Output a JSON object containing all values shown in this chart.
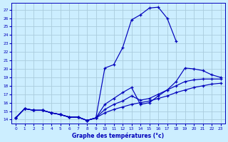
{
  "bg_color": "#cceeff",
  "grid_color": "#aaccdd",
  "line_color": "#0000bb",
  "xlabel": "Graphe des températures (°c)",
  "xlim": [
    -0.5,
    23.5
  ],
  "ylim": [
    13.5,
    27.8
  ],
  "yticks": [
    14,
    15,
    16,
    17,
    18,
    19,
    20,
    21,
    22,
    23,
    24,
    25,
    26,
    27
  ],
  "xticks": [
    0,
    1,
    2,
    3,
    4,
    5,
    6,
    7,
    8,
    9,
    10,
    11,
    12,
    13,
    14,
    15,
    16,
    17,
    18,
    19,
    20,
    21,
    22,
    23
  ],
  "series": [
    {
      "x": [
        0,
        1,
        2,
        3,
        4,
        5,
        6,
        7,
        8,
        9,
        10,
        11,
        12,
        13,
        14,
        15,
        16,
        17,
        18
      ],
      "y": [
        14.2,
        15.3,
        15.1,
        15.1,
        14.8,
        14.6,
        14.3,
        14.3,
        13.9,
        14.2,
        20.1,
        20.5,
        22.5,
        25.8,
        26.4,
        27.2,
        27.3,
        26.0,
        23.3
      ]
    },
    {
      "x": [
        0,
        1,
        2,
        3,
        4,
        5,
        6,
        7,
        8,
        9,
        10,
        11,
        12,
        13,
        14,
        15,
        16,
        17,
        18,
        19,
        20,
        21,
        22,
        23
      ],
      "y": [
        14.2,
        15.3,
        15.1,
        15.1,
        14.8,
        14.6,
        14.3,
        14.3,
        13.9,
        14.2,
        15.8,
        16.5,
        17.2,
        17.8,
        15.8,
        16.0,
        16.8,
        17.5,
        18.5,
        20.1,
        20.0,
        19.8,
        19.3,
        19.0
      ]
    },
    {
      "x": [
        0,
        1,
        2,
        3,
        4,
        5,
        6,
        7,
        8,
        9,
        10,
        11,
        12,
        13,
        14,
        15,
        16,
        17,
        18,
        19,
        20,
        21,
        22,
        23
      ],
      "y": [
        14.2,
        15.3,
        15.1,
        15.1,
        14.8,
        14.6,
        14.3,
        14.3,
        13.9,
        14.2,
        15.2,
        15.8,
        16.2,
        16.8,
        16.3,
        16.5,
        17.0,
        17.5,
        18.0,
        18.5,
        18.7,
        18.8,
        18.8,
        18.8
      ]
    },
    {
      "x": [
        0,
        1,
        2,
        3,
        4,
        5,
        6,
        7,
        8,
        9,
        10,
        11,
        12,
        13,
        14,
        15,
        16,
        17,
        18,
        19,
        20,
        21,
        22,
        23
      ],
      "y": [
        14.2,
        15.3,
        15.1,
        15.1,
        14.8,
        14.6,
        14.3,
        14.3,
        13.9,
        14.2,
        14.8,
        15.2,
        15.5,
        15.8,
        16.0,
        16.2,
        16.5,
        16.8,
        17.2,
        17.5,
        17.8,
        18.0,
        18.2,
        18.3
      ]
    }
  ]
}
